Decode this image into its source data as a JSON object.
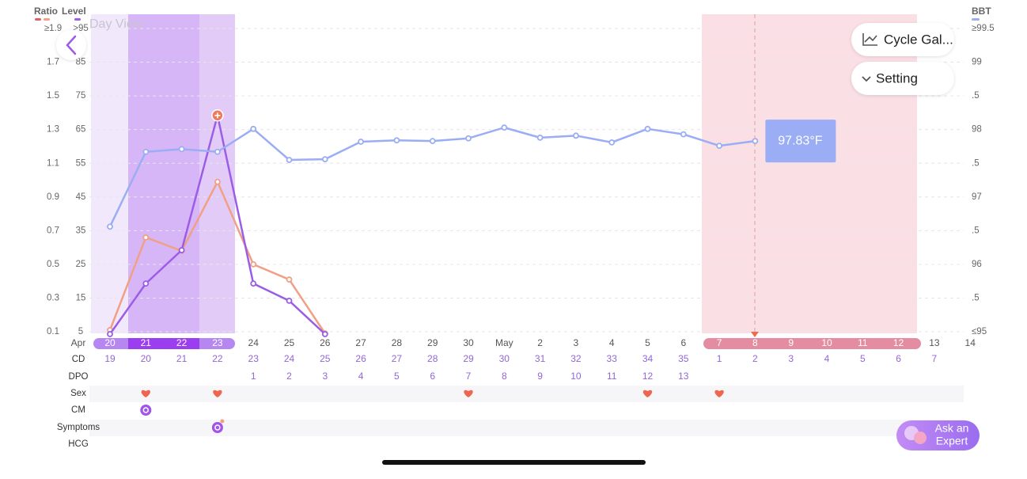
{
  "header": {
    "day_view": "Day View",
    "cycle_gallery": "Cycle Gal...",
    "setting": "Setting",
    "ask_line1": "Ask an",
    "ask_line2": "Expert"
  },
  "chart_data": {
    "type": "line",
    "month": "Apr",
    "categories": [
      "20",
      "21",
      "22",
      "23",
      "24",
      "25",
      "26",
      "27",
      "28",
      "29",
      "30",
      "May",
      "2",
      "3",
      "4",
      "5",
      "6",
      "7",
      "8",
      "9",
      "10",
      "11",
      "12",
      "13",
      "14"
    ],
    "axes": {
      "ratio": {
        "title": "Ratio",
        "lim": [
          0.1,
          1.9
        ],
        "ticks": [
          {
            "value": 1.9,
            "label": "≥1.9"
          },
          1.7,
          1.5,
          1.3,
          1.1,
          0.9,
          0.7,
          0.5,
          0.3,
          0.1
        ]
      },
      "level": {
        "title": "Level",
        "lim": [
          5,
          95
        ],
        "ticks": [
          {
            "value": 95,
            "label": ">95"
          },
          85,
          75,
          65,
          55,
          45,
          35,
          25,
          15,
          5
        ]
      },
      "bbt": {
        "title": "BBT",
        "lim": [
          95,
          99.5
        ],
        "ticks": [
          {
            "value": 99.5,
            "label": "≥99.5"
          },
          99,
          {
            "value": 98.5,
            "label": ".5"
          },
          98,
          {
            "value": 97.5,
            "label": ".5"
          },
          97,
          {
            "value": 96.5,
            "label": ".5"
          },
          96,
          {
            "value": 95.5,
            "label": ".5"
          },
          {
            "value": 95,
            "label": "≤95"
          }
        ]
      }
    },
    "grid": true,
    "series": [
      {
        "color": "#f0a084",
        "axis": "ratio",
        "values": [
          0.11,
          0.66,
          0.58,
          0.99,
          0.5,
          0.41,
          0.09,
          null,
          null,
          null,
          null,
          null,
          null,
          null,
          null,
          null,
          null,
          null,
          null,
          null,
          null,
          null,
          null,
          null,
          null
        ]
      },
      {
        "color": "#9b5de5",
        "axis": "level",
        "values": [
          4.3,
          19.3,
          29.2,
          69.2,
          19.3,
          14.2,
          4.3,
          null,
          null,
          null,
          null,
          null,
          null,
          null,
          null,
          null,
          null,
          null,
          null,
          null,
          null,
          null,
          null,
          null,
          null
        ]
      },
      {
        "color": "#9aadf5",
        "axis": "bbt",
        "values": [
          96.56,
          97.67,
          97.71,
          97.67,
          98.01,
          97.55,
          97.56,
          97.82,
          97.84,
          97.83,
          97.87,
          98.03,
          97.88,
          97.91,
          97.81,
          98.01,
          97.93,
          97.76,
          97.83,
          null,
          null,
          null,
          null,
          null,
          null
        ],
        "value_labels": [
          null,
          null,
          null,
          null,
          null,
          null,
          null,
          null,
          null,
          null,
          null,
          null,
          null,
          null,
          null,
          null,
          null,
          null,
          "97.83°F",
          null,
          null,
          null,
          null,
          null,
          null
        ]
      }
    ]
  },
  "rows": [
    {
      "label": "CD",
      "values": [
        19,
        20,
        21,
        22,
        23,
        24,
        25,
        26,
        27,
        28,
        29,
        30,
        31,
        32,
        33,
        34,
        35,
        1,
        2,
        3,
        4,
        5,
        6,
        7,
        null
      ]
    },
    {
      "label": "DPO",
      "values": [
        null,
        null,
        null,
        null,
        1,
        2,
        3,
        4,
        5,
        6,
        7,
        8,
        9,
        10,
        11,
        12,
        13,
        null,
        null,
        null,
        null,
        null,
        null,
        null,
        null
      ]
    },
    {
      "label": "Sex",
      "logged": [
        false,
        true,
        false,
        true,
        false,
        false,
        false,
        false,
        false,
        false,
        true,
        false,
        false,
        false,
        false,
        true,
        false,
        true,
        false,
        false,
        false,
        false,
        false,
        false,
        false
      ]
    },
    {
      "label": "CM",
      "logged": [
        false,
        true,
        false,
        false,
        false,
        false,
        false,
        false,
        false,
        false,
        false,
        false,
        false,
        false,
        false,
        false,
        false,
        false,
        false,
        false,
        false,
        false,
        false,
        false,
        false
      ]
    },
    {
      "label": "Symptoms",
      "logged": [
        false,
        false,
        false,
        true,
        false,
        false,
        false,
        false,
        false,
        false,
        false,
        false,
        false,
        false,
        false,
        false,
        false,
        false,
        false,
        false,
        false,
        false,
        false,
        false,
        false
      ]
    },
    {
      "label": "HCG"
    }
  ]
}
